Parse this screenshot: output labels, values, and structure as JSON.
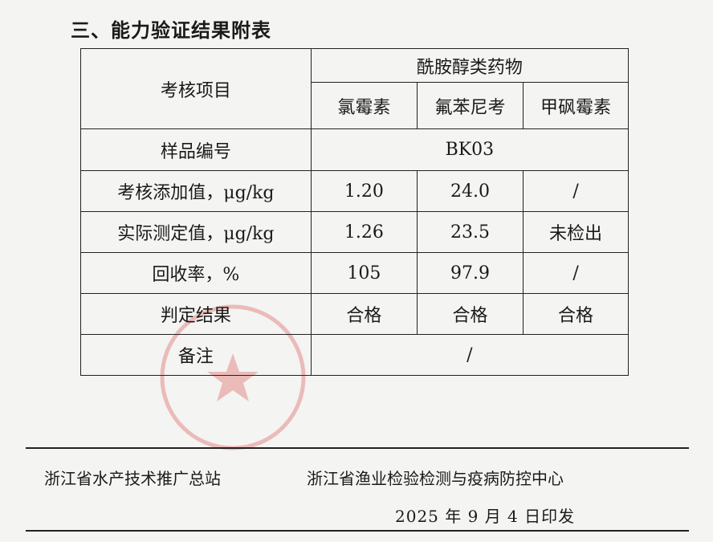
{
  "section_title": "三、能力验证结果附表",
  "table": {
    "header_item": "考核项目",
    "group_header": "酰胺醇类药物",
    "drugs": [
      "氯霉素",
      "氟苯尼考",
      "甲砜霉素"
    ],
    "sample_label": "样品编号",
    "sample_id": "BK03",
    "rows": [
      {
        "label": "考核添加值，μg/kg",
        "values": [
          "1.20",
          "24.0",
          "/"
        ]
      },
      {
        "label": "实际测定值，μg/kg",
        "values": [
          "1.26",
          "23.5",
          "未检出"
        ]
      },
      {
        "label": "回收率，%",
        "values": [
          "105",
          "97.9",
          "/"
        ]
      },
      {
        "label": "判定结果",
        "values": [
          "合格",
          "合格",
          "合格"
        ]
      }
    ],
    "remark_label": "备注",
    "remark_value": "/"
  },
  "footer": {
    "org1": "浙江省水产技术推广总站",
    "org2": "浙江省渔业检验检测与疫病防控中心",
    "date": "2025 年 9 月 4 日印发"
  },
  "stamp_color": "#d9534f"
}
